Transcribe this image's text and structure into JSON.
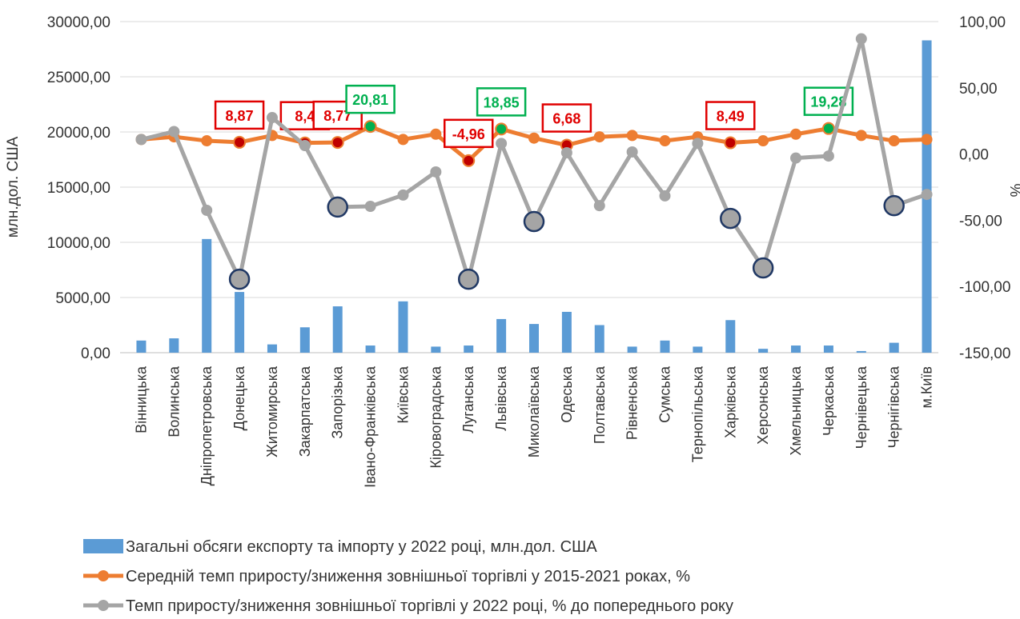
{
  "chart_data": {
    "type": "combo",
    "categories": [
      "Вінницька",
      "Волинська",
      "Дніпропетровська",
      "Донецька",
      "Житомирська",
      "Закарпатська",
      "Запорізька",
      "Івано-Франківська",
      "Київська",
      "Кіровоградська",
      "Луганська",
      "Львівська",
      "Миколаївська",
      "Одеська",
      "Полтавська",
      "Рівненська",
      "Сумська",
      "Тернопільська",
      "Харківська",
      "Херсонська",
      "Хмельницька",
      "Черкаська",
      "Чернівецька",
      "Чернігівська",
      "м.Київ"
    ],
    "ylabel": "млн.дол. США",
    "y2label": "%",
    "ylim": [
      0,
      30000
    ],
    "yticks": [
      {
        "value": 0,
        "label": "0,00"
      },
      {
        "value": 5000,
        "label": "5000,00"
      },
      {
        "value": 10000,
        "label": "10000,00"
      },
      {
        "value": 15000,
        "label": "15000,00"
      },
      {
        "value": 20000,
        "label": "20000,00"
      },
      {
        "value": 25000,
        "label": "25000,00"
      },
      {
        "value": 30000,
        "label": "30000,00"
      }
    ],
    "y2lim": [
      -150,
      100
    ],
    "y2ticks": [
      {
        "value": -150,
        "label": "-150,00"
      },
      {
        "value": -100,
        "label": "-100,00"
      },
      {
        "value": -50,
        "label": "-50,00"
      },
      {
        "value": 0,
        "label": "0,00"
      },
      {
        "value": 50,
        "label": "50,00"
      },
      {
        "value": 100,
        "label": "100,00"
      }
    ],
    "grid": true,
    "series": [
      {
        "name": "Загальні обсяги експорту та імпорту у 2022 році, млн.дол. США",
        "type": "bar",
        "color": "#5b9bd5",
        "values": [
          1100,
          1300,
          10300,
          5500,
          750,
          2300,
          4200,
          650,
          4650,
          550,
          650,
          3050,
          2600,
          3700,
          2500,
          550,
          1100,
          550,
          2950,
          350,
          650,
          650,
          150,
          900,
          28300
        ]
      },
      {
        "name": "Середній темп приросту/зниження зовнішньої торгівлі у 2015-2021 роках, %",
        "type": "line",
        "axis": "y2",
        "color": "#ed7d31",
        "values": [
          11,
          13,
          10,
          8.87,
          14,
          8.4,
          8.77,
          20.81,
          11,
          15,
          -4.96,
          18.85,
          12,
          6.68,
          13,
          14,
          10,
          13,
          8.49,
          10,
          15,
          19.28,
          14,
          10,
          11
        ],
        "value_labels": [
          null,
          null,
          null,
          "8,87",
          null,
          "8,4",
          "8,77",
          "20,81",
          null,
          null,
          "-4,96",
          "18,85",
          null,
          "6,68",
          null,
          null,
          null,
          null,
          "8,49",
          null,
          null,
          "19,28",
          null,
          null,
          null
        ],
        "value_label_colors": [
          null,
          null,
          null,
          "#e00000",
          null,
          "#e00000",
          "#e00000",
          "#00b050",
          null,
          null,
          "#e00000",
          "#00b050",
          null,
          "#e00000",
          null,
          null,
          null,
          null,
          "#e00000",
          null,
          null,
          "#00b050",
          null,
          null,
          null
        ]
      },
      {
        "name": "Темп приросту/зниження зовнішньої торгівлі у 2022 році, % до попереднього року",
        "type": "line",
        "axis": "y2",
        "color": "#a5a5a5",
        "values": [
          11,
          17,
          -42.5,
          -94.5,
          27.5,
          6.4,
          -40,
          -39.5,
          -31,
          -13.5,
          -94.5,
          8,
          -51,
          1,
          -39,
          1.6,
          -31.6,
          8,
          -48.6,
          -86,
          -3,
          -1.5,
          87,
          -39,
          -30.5
        ],
        "highlight": [
          false,
          false,
          false,
          true,
          false,
          false,
          true,
          false,
          false,
          false,
          true,
          false,
          true,
          false,
          false,
          false,
          false,
          false,
          true,
          true,
          false,
          false,
          false,
          true,
          false
        ]
      }
    ]
  }
}
